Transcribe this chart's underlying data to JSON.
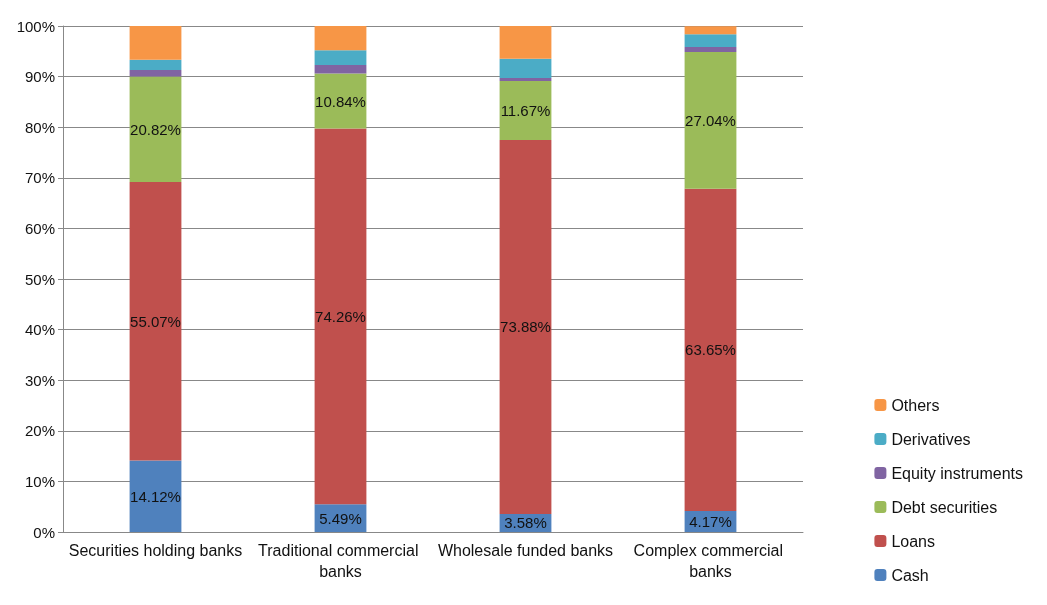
{
  "chart_data": {
    "type": "bar",
    "stacked": true,
    "categories": [
      "Securities holding banks",
      "Traditional commercial banks",
      "Wholesale funded banks",
      "Complex commercial banks"
    ],
    "series": [
      {
        "name": "Cash",
        "color": "#4f81bd",
        "values": [
          14.12,
          5.49,
          3.58,
          4.17
        ],
        "value_labels": [
          "14.12%",
          "5.49%",
          "3.58%",
          "4.17%"
        ]
      },
      {
        "name": "Loans",
        "color": "#c0504d",
        "values": [
          55.07,
          74.26,
          73.88,
          63.65
        ],
        "value_labels": [
          "55.07%",
          "74.26%",
          "73.88%",
          "63.65%"
        ]
      },
      {
        "name": "Debt securities",
        "color": "#9bbb59",
        "values": [
          20.82,
          10.84,
          11.67,
          27.04
        ],
        "value_labels": [
          "20.82%",
          "10.84%",
          "11.67%",
          "27.04%"
        ]
      },
      {
        "name": "Equity instruments",
        "color": "#8064a2",
        "values": [
          1.3,
          1.7,
          0.6,
          1.0
        ]
      },
      {
        "name": "Derivatives",
        "color": "#4bacc6",
        "values": [
          2.0,
          2.9,
          3.8,
          2.5
        ]
      },
      {
        "name": "Others",
        "color": "#f79646",
        "values": [
          6.7,
          4.8,
          6.5,
          1.6
        ]
      }
    ],
    "ylim": [
      0,
      100
    ],
    "yticks": [
      {
        "value": 0,
        "label": "0%"
      },
      {
        "value": 10,
        "label": "10%"
      },
      {
        "value": 20,
        "label": "20%"
      },
      {
        "value": 30,
        "label": "30%"
      },
      {
        "value": 40,
        "label": "40%"
      },
      {
        "value": 50,
        "label": "50%"
      },
      {
        "value": 60,
        "label": "60%"
      },
      {
        "value": 70,
        "label": "70%"
      },
      {
        "value": 80,
        "label": "80%"
      },
      {
        "value": 90,
        "label": "90%"
      },
      {
        "value": 100,
        "label": "100%"
      }
    ],
    "grid": "y",
    "legend": "right"
  }
}
